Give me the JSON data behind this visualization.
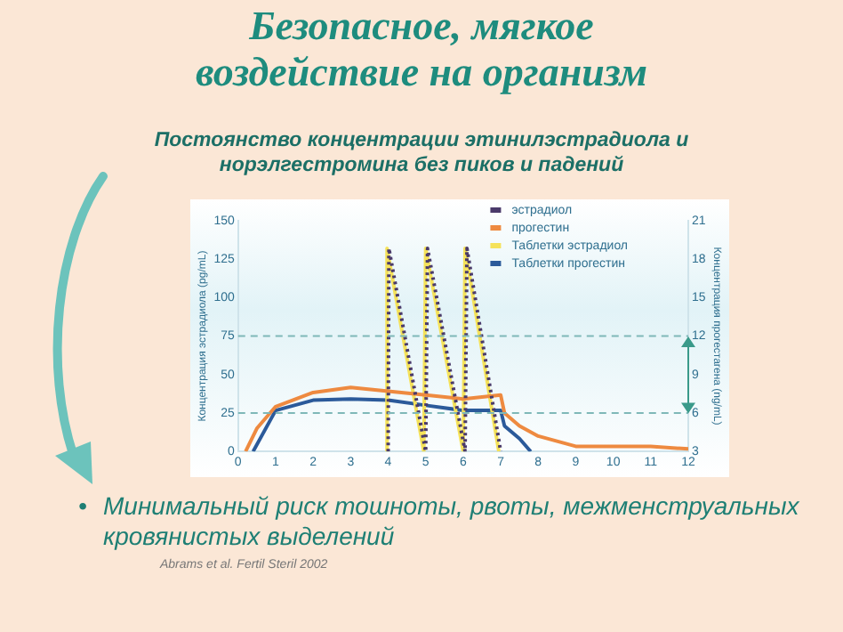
{
  "chart_data": {
    "type": "line",
    "title": "Безопасное, мягкое воздействие на организм",
    "subtitle": "Постоянство концентрации этинилэстрадиола и норэлгестромина без пиков и падений",
    "ylabel": "Концентрация эстрадиола (pg/mL)",
    "y2label": "Концентрация прогестагена (ng/mL)",
    "xlim": [
      0,
      12
    ],
    "xticks": [
      0,
      1,
      2,
      3,
      4,
      5,
      6,
      7,
      8,
      9,
      10,
      11,
      12
    ],
    "ylim": [
      0,
      150
    ],
    "yticks": [
      0,
      25,
      50,
      75,
      100,
      125,
      150
    ],
    "y2lim": [
      3,
      21
    ],
    "y2ticks": [
      3,
      6,
      9,
      12,
      15,
      18,
      21
    ],
    "grid": false,
    "legend": "top right",
    "marker": "none",
    "ref_lines": [
      {
        "axis": "y",
        "value": 75,
        "color": "#7fb8b8",
        "line_style": "dashed"
      },
      {
        "axis": "y",
        "value": 25,
        "color": "#7fb8b8",
        "line_style": "dashed"
      }
    ],
    "series": [
      {
        "name": "эстрадиол",
        "color": "#4a3a6a",
        "line_style": "dotted",
        "x": [
          4,
          4.02,
          5,
          5.05,
          6.05,
          6.1,
          7
        ],
        "values": [
          0,
          132,
          0,
          132,
          0,
          132,
          0
        ]
      },
      {
        "name": "прогестин",
        "color": "#ee8a40",
        "axis": "y2",
        "x": [
          0.2,
          0.5,
          1,
          2,
          3,
          4,
          5,
          6,
          7,
          7.1,
          7.5,
          8,
          9,
          10,
          11,
          12
        ],
        "values": [
          3,
          4.8,
          6.5,
          7.6,
          8,
          7.7,
          7.4,
          7.1,
          7.4,
          6,
          5,
          4.2,
          3.4,
          3.4,
          3.4,
          3.2
        ]
      },
      {
        "name": "Таблетки эстрадиол",
        "color": "#f5e25a",
        "x": [
          3.95,
          3.97,
          4.95,
          5,
          6,
          6.05,
          6.95
        ],
        "values": [
          0,
          132,
          0,
          132,
          0,
          132,
          0
        ]
      },
      {
        "name": "Таблетки прогестин",
        "color": "#2b5a9a",
        "axis": "y2",
        "x": [
          0.4,
          1,
          2,
          3,
          4,
          5,
          6,
          7,
          7.1,
          7.5,
          7.8
        ],
        "values": [
          3,
          6.2,
          7,
          7.1,
          7,
          6.6,
          6.2,
          6.2,
          5,
          4,
          3
        ]
      }
    ],
    "annotations": [
      "•\tМинимальный риск тошноты, рвоты, межменструальных кровянистых выделений",
      "Abrams et al. Fertil Steril 2002"
    ]
  }
}
